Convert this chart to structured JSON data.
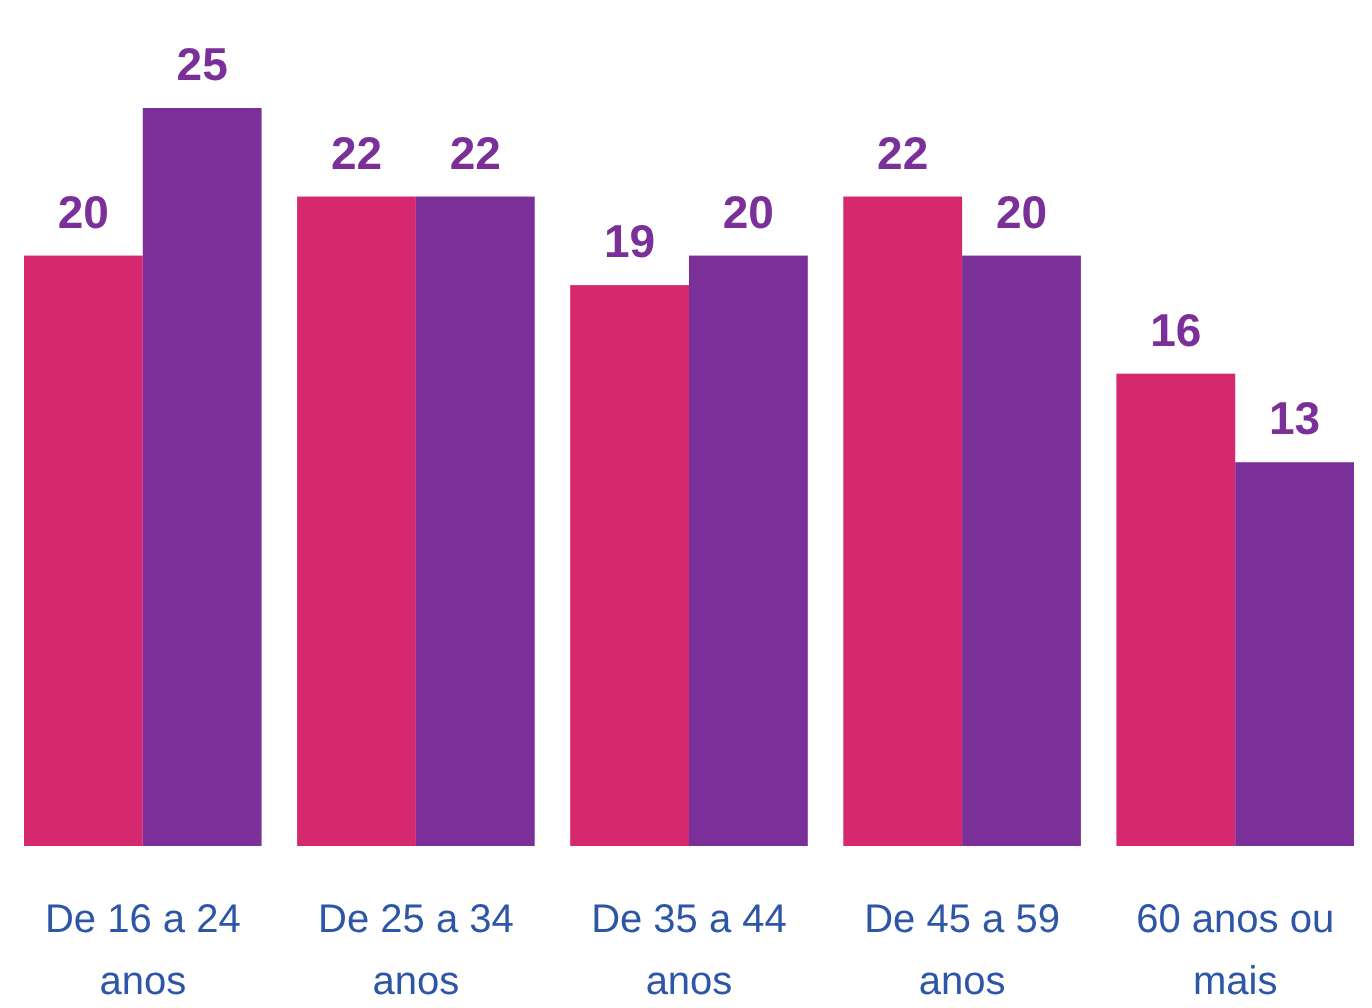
{
  "chart_data": {
    "type": "bar",
    "categories": [
      "De 16 a 24 anos",
      "De 25 a 34 anos",
      "De 35 a 44 anos",
      "De 45 a 59 anos",
      "60 anos ou mais"
    ],
    "series": [
      {
        "color": "#d6286f",
        "values": [
          20,
          22,
          19,
          22,
          16
        ]
      },
      {
        "color": "#7a2f99",
        "values": [
          25,
          22,
          20,
          20,
          13
        ]
      }
    ],
    "ylim": [
      0,
      25
    ],
    "data_labels": true
  }
}
